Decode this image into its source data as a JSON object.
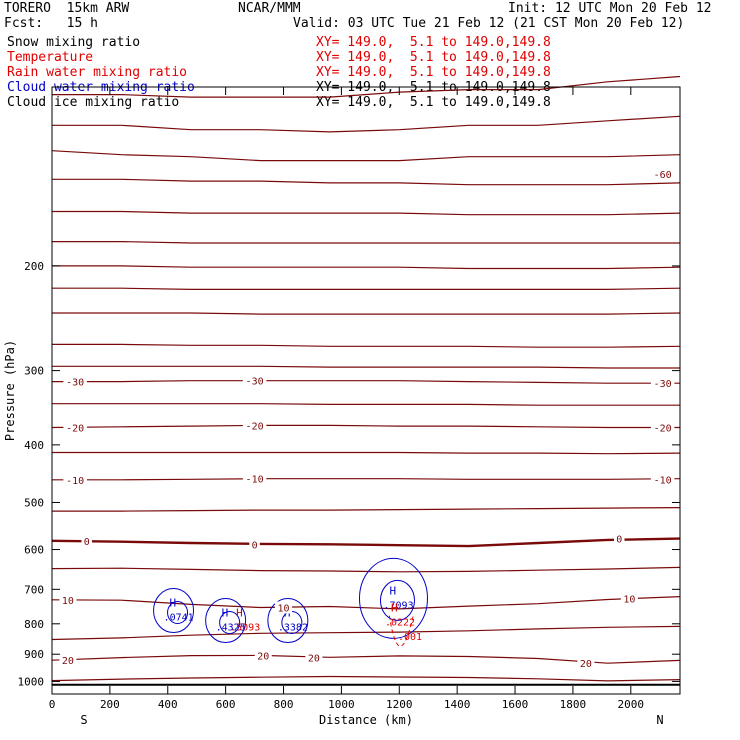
{
  "header": {
    "model": "TORERO  15km ARW",
    "org": "NCAR/MMM",
    "init": "Init: 12 UTC Mon 20 Feb 12",
    "fcst": "Fcst:   15 h",
    "valid": "Valid: 03 UTC Tue 21 Feb 12 (21 CST Mon 20 Feb 12)"
  },
  "fields": [
    {
      "name": "Snow mixing ratio",
      "xy": "",
      "color": "#000000"
    },
    {
      "name": "Temperature",
      "xy": "XY= 149.0,  5.1 to 149.0,149.8",
      "color": "#e00000"
    },
    {
      "name": "Rain water mixing ratio",
      "xy": "XY= 149.0,  5.1 to 149.0,149.8",
      "color": "#e00000"
    },
    {
      "name": "Cloud water mixing ratio",
      "xy": "XY= 149.0,  5.1 to 149.0,149.8",
      "color": "#0000c8"
    },
    {
      "name": "Cloud ice mixing ratio",
      "xy": "XY= 149.0,  5.1 to 149.0,149.8",
      "color": "#000000"
    }
  ],
  "first_xy": "XY= 149.0,  5.1 to 149.0,149.8",
  "chart_data": {
    "type": "contour",
    "xlabel": "Distance (km)",
    "ylabel": "Pressure (hPa)",
    "xlim": [
      0,
      2170
    ],
    "ylim": [
      1050,
      100
    ],
    "x_ticks": [
      0,
      200,
      400,
      600,
      800,
      1000,
      1200,
      1400,
      1600,
      1800,
      2000
    ],
    "y_ticks": [
      200,
      300,
      400,
      500,
      600,
      700,
      800,
      900,
      1000
    ],
    "end_labels": {
      "left": "S",
      "right": "N"
    },
    "temperature_labels": [
      {
        "text": "-60",
        "x": 2110,
        "p": 140
      },
      {
        "text": "-30",
        "x": 80,
        "p": 313
      },
      {
        "text": "-30",
        "x": 700,
        "p": 312
      },
      {
        "text": "-30",
        "x": 2110,
        "p": 315
      },
      {
        "text": "-20",
        "x": 80,
        "p": 374
      },
      {
        "text": "-20",
        "x": 700,
        "p": 371
      },
      {
        "text": "-20",
        "x": 2110,
        "p": 374
      },
      {
        "text": "-10",
        "x": 80,
        "p": 458
      },
      {
        "text": "-10",
        "x": 700,
        "p": 456
      },
      {
        "text": "-10",
        "x": 2110,
        "p": 457
      },
      {
        "text": "0",
        "x": 120,
        "p": 580
      },
      {
        "text": "0",
        "x": 700,
        "p": 588
      },
      {
        "text": "0",
        "x": 1960,
        "p": 575
      },
      {
        "text": "10",
        "x": 55,
        "p": 730
      },
      {
        "text": "10",
        "x": 800,
        "p": 751
      },
      {
        "text": "10",
        "x": 1995,
        "p": 726
      },
      {
        "text": "20",
        "x": 55,
        "p": 921
      },
      {
        "text": "20",
        "x": 730,
        "p": 904
      },
      {
        "text": "20",
        "x": 905,
        "p": 911
      },
      {
        "text": "20",
        "x": 1845,
        "p": 932
      }
    ],
    "temperature_isotherms": [
      {
        "t": -60,
        "p": [
          103,
          103,
          104,
          104,
          104,
          102,
          101,
          101,
          98,
          96
        ]
      },
      {
        "t": -60,
        "p": [
          116,
          116,
          118,
          118,
          119,
          118,
          116,
          116,
          114,
          112
        ]
      },
      {
        "t": -60,
        "p": [
          128,
          130,
          131,
          133,
          133,
          133,
          131,
          131,
          131,
          130
        ]
      },
      {
        "t": -60,
        "p": [
          143,
          143,
          144,
          144,
          145,
          145,
          146,
          146,
          146,
          145
        ]
      },
      {
        "t": -60,
        "p": [
          162,
          162,
          163,
          163,
          163,
          163,
          164,
          164,
          164,
          163
        ]
      },
      {
        "t": -60,
        "p": [
          182,
          182,
          183,
          183,
          183,
          183,
          183,
          183,
          183,
          183
        ]
      },
      {
        "t": -50,
        "p": [
          200,
          200,
          201,
          201,
          201,
          201,
          202,
          202,
          202,
          201
        ]
      },
      {
        "t": -50,
        "p": [
          218,
          218,
          219,
          219,
          219,
          219,
          219,
          219,
          219,
          218
        ]
      },
      {
        "t": -40,
        "p": [
          240,
          240,
          240,
          241,
          241,
          241,
          241,
          241,
          241,
          240
        ]
      },
      {
        "t": -40,
        "p": [
          271,
          271,
          272,
          272,
          273,
          273,
          273,
          274,
          274,
          273
        ]
      },
      {
        "t": -30,
        "p": [
          295,
          295,
          295,
          295,
          296,
          296,
          296,
          296,
          297,
          297
        ]
      },
      {
        "t": -30,
        "p": [
          313,
          313,
          312,
          312,
          312,
          312,
          313,
          314,
          315,
          315
        ]
      },
      {
        "t": -20,
        "p": [
          341,
          341,
          341,
          341,
          342,
          342,
          342,
          343,
          343,
          343
        ]
      },
      {
        "t": -20,
        "p": [
          374,
          373,
          372,
          371,
          371,
          372,
          372,
          373,
          374,
          374
        ]
      },
      {
        "t": -10,
        "p": [
          412,
          412,
          412,
          412,
          412,
          412,
          413,
          413,
          414,
          413
        ]
      },
      {
        "t": -10,
        "p": [
          458,
          458,
          457,
          456,
          456,
          456,
          457,
          457,
          457,
          456
        ]
      },
      {
        "t": 0,
        "p": [
          517,
          517,
          516,
          515,
          515,
          514,
          513,
          512,
          511,
          510
        ]
      },
      {
        "t": 0,
        "p": [
          580,
          582,
          585,
          587,
          588,
          590,
          592,
          585,
          578,
          575
        ]
      },
      {
        "t": 10,
        "p": [
          646,
          645,
          648,
          651,
          652,
          654,
          653,
          650,
          647,
          643
        ]
      },
      {
        "t": 10,
        "p": [
          729,
          730,
          742,
          751,
          748,
          755,
          747,
          740,
          728,
          720
        ]
      },
      {
        "t": 20,
        "p": [
          850,
          845,
          836,
          830,
          828,
          826,
          822,
          816,
          811,
          808
        ]
      },
      {
        "t": 20,
        "p": [
          921,
          912,
          905,
          904,
          911,
          906,
          908,
          915,
          932,
          922
        ]
      },
      {
        "t": 20,
        "p": [
          997,
          991,
          987,
          984,
          981,
          983,
          985,
          990,
          998,
          993
        ]
      }
    ],
    "isotherm_x": [
      0,
      240,
      480,
      720,
      960,
      1200,
      1440,
      1680,
      1920,
      2170
    ],
    "surface_p": 1013,
    "cloud_water_maxima": [
      {
        "label": "H",
        "value": ".0741",
        "x": 420,
        "p": 760
      },
      {
        "label": "H",
        "value": ".4325",
        "x": 600,
        "p": 790
      },
      {
        "label": "H",
        "value": ".3382",
        "x": 815,
        "p": 790
      },
      {
        "label": "H",
        "value": ".7093",
        "x": 1180,
        "p": 725
      }
    ],
    "rain_maxima": [
      {
        "label": "H",
        "value": ".5093",
        "x": 650,
        "p": 790
      },
      {
        "label": "H",
        "value": ".0222",
        "x": 1185,
        "p": 775
      },
      {
        "label": "",
        "value": ".001",
        "x": 1230,
        "p": 820
      }
    ]
  }
}
